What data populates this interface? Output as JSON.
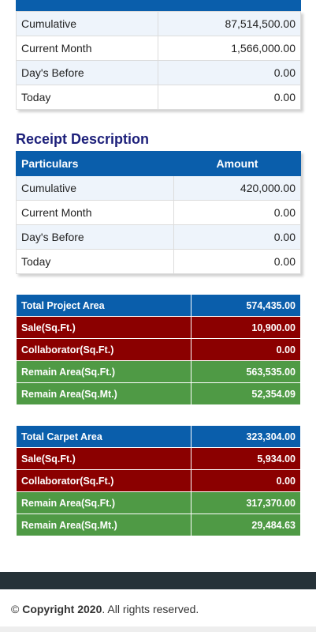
{
  "payment": {
    "rows": [
      {
        "label": "Cumulative",
        "amount": "87,514,500.00"
      },
      {
        "label": "Current Month",
        "amount": "1,566,000.00"
      },
      {
        "label": "Day's Before",
        "amount": "0.00"
      },
      {
        "label": "Today",
        "amount": "0.00"
      }
    ]
  },
  "receipt": {
    "title": "Receipt Description",
    "header": {
      "particulars": "Particulars",
      "amount": "Amount"
    },
    "rows": [
      {
        "label": "Cumulative",
        "amount": "420,000.00"
      },
      {
        "label": "Current Month",
        "amount": "0.00"
      },
      {
        "label": "Day's Before",
        "amount": "0.00"
      },
      {
        "label": "Today",
        "amount": "0.00"
      }
    ]
  },
  "project_area": {
    "rows": [
      {
        "label": "Total Project Area",
        "value": "574,435.00"
      },
      {
        "label": "Sale(Sq.Ft.)",
        "value": "10,900.00"
      },
      {
        "label": "Collaborator(Sq.Ft.)",
        "value": "0.00"
      },
      {
        "label": "Remain Area(Sq.Ft.)",
        "value": "563,535.00"
      },
      {
        "label": "Remain Area(Sq.Mt.)",
        "value": "52,354.09"
      }
    ]
  },
  "carpet_area": {
    "rows": [
      {
        "label": "Total Carpet Area",
        "value": "323,304.00"
      },
      {
        "label": "Sale(Sq.Ft.)",
        "value": "5,934.00"
      },
      {
        "label": "Collaborator(Sq.Ft.)",
        "value": "0.00"
      },
      {
        "label": "Remain Area(Sq.Ft.)",
        "value": "317,370.00"
      },
      {
        "label": "Remain Area(Sq.Mt.)",
        "value": "29,484.63"
      }
    ]
  },
  "footer": {
    "copyright_symbol": "©",
    "copyright_bold": "Copyright 2020",
    "copyright_rest": ". All rights reserved."
  },
  "colors": {
    "header_blue": "#0a5eab",
    "sale_red": "#8b0000",
    "remain_green": "#4f9a45",
    "title_navy": "#1c1f7a"
  }
}
